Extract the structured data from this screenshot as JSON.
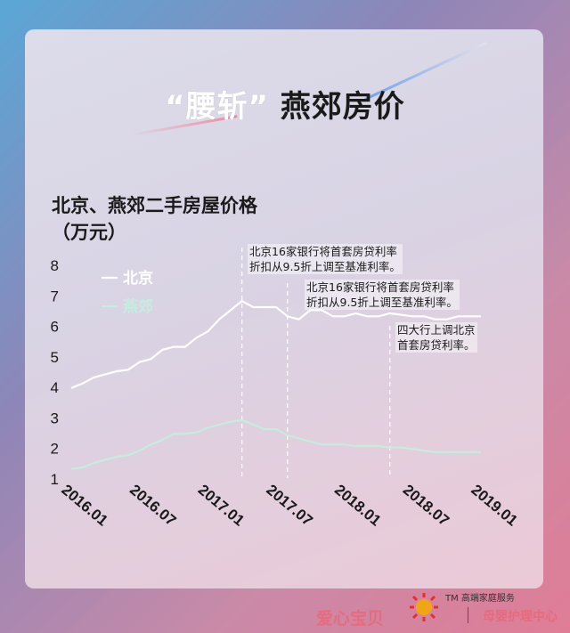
{
  "title": {
    "accent": "“腰斩”",
    "main": "燕郊房价"
  },
  "subtitle": {
    "line1": "北京、燕郊二手房屋价格",
    "line2": "（万元）"
  },
  "footer": {
    "brand_left": "爱心宝贝",
    "brand_tm": "TM 高端家庭服务",
    "brand_right": "母婴护理中心"
  },
  "colors": {
    "beijing": "#ffffff",
    "yanjiao": "#c6ecdf",
    "guide": "#ffffff"
  },
  "chart_data": {
    "type": "line",
    "ylabel": "（万元）",
    "ylim": [
      1,
      8
    ],
    "yticks": [
      1,
      2,
      3,
      4,
      5,
      6,
      7,
      8
    ],
    "xticks": [
      "2016.01",
      "2016.07",
      "2017.01",
      "2017.07",
      "2018.01",
      "2018.07",
      "2019.01"
    ],
    "x": [
      "2016.01",
      "2016.02",
      "2016.03",
      "2016.04",
      "2016.05",
      "2016.06",
      "2016.07",
      "2016.08",
      "2016.09",
      "2016.10",
      "2016.11",
      "2016.12",
      "2017.01",
      "2017.02",
      "2017.03",
      "2017.04",
      "2017.05",
      "2017.06",
      "2017.07",
      "2017.08",
      "2017.09",
      "2017.10",
      "2017.11",
      "2017.12",
      "2018.01",
      "2018.02",
      "2018.03",
      "2018.04",
      "2018.05",
      "2018.06",
      "2018.07",
      "2018.08",
      "2018.09",
      "2018.10",
      "2018.11",
      "2018.12",
      "2019.01"
    ],
    "series": [
      {
        "name": "北京",
        "values": [
          3.95,
          4.1,
          4.3,
          4.4,
          4.5,
          4.55,
          4.8,
          4.9,
          5.2,
          5.3,
          5.3,
          5.6,
          5.8,
          6.2,
          6.5,
          6.8,
          6.6,
          6.6,
          6.6,
          6.3,
          6.2,
          6.5,
          6.5,
          6.3,
          6.3,
          6.4,
          6.3,
          6.3,
          6.4,
          6.35,
          6.3,
          6.3,
          6.2,
          6.2,
          6.3,
          6.3,
          6.3
        ]
      },
      {
        "name": "燕郊",
        "values": [
          1.3,
          1.35,
          1.5,
          1.6,
          1.7,
          1.75,
          1.9,
          2.1,
          2.25,
          2.45,
          2.45,
          2.5,
          2.65,
          2.75,
          2.85,
          2.9,
          2.75,
          2.6,
          2.6,
          2.4,
          2.3,
          2.2,
          2.1,
          2.1,
          2.1,
          2.05,
          2.05,
          2.05,
          2.0,
          2.0,
          1.95,
          1.9,
          1.85,
          1.85,
          1.85,
          1.85,
          1.85
        ]
      }
    ],
    "annotations": [
      {
        "x": "2017.04",
        "text_line1": "北京16家银行将首套房贷利率",
        "text_line2": "折扣从9.5折上调至基准利率。"
      },
      {
        "x": "2017.08",
        "text_line1": "北京16家银行将首套房贷利率",
        "text_line2": "折扣从9.5折上调至基准利率。"
      },
      {
        "x": "2018.05",
        "text_line1": "四大行上调北京",
        "text_line2": "首套房贷利率。"
      }
    ]
  }
}
